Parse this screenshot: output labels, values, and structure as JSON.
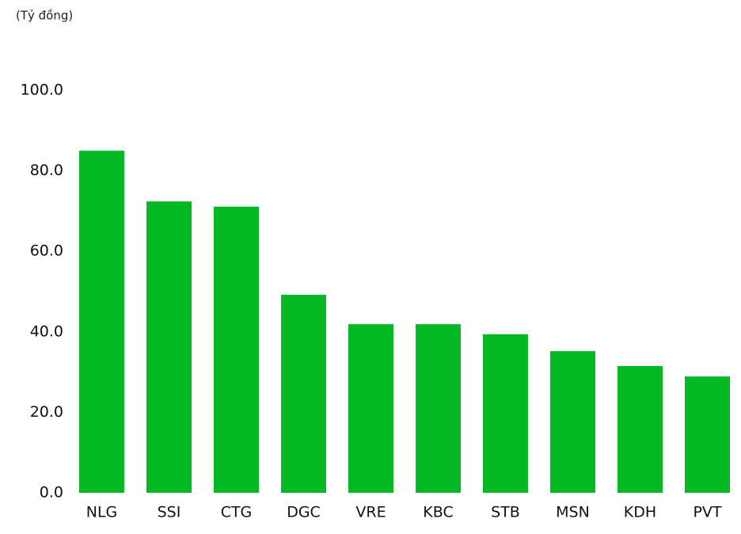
{
  "chart_data": {
    "type": "bar",
    "y_label": "(Tỷ đồng)",
    "categories": [
      "NLG",
      "SSI",
      "CTG",
      "DGC",
      "VRE",
      "KBC",
      "STB",
      "MSN",
      "KDH",
      "PVT"
    ],
    "values": [
      85.0,
      72.4,
      71.1,
      49.2,
      41.9,
      41.9,
      39.4,
      35.2,
      31.5,
      28.9
    ],
    "color": "#04b923",
    "ylim": [
      0,
      100
    ],
    "yticks": [
      {
        "value": 0,
        "label": "0.0"
      },
      {
        "value": 20,
        "label": "20.0"
      },
      {
        "value": 40,
        "label": "40.0"
      },
      {
        "value": 60,
        "label": "60.0"
      },
      {
        "value": 80,
        "label": "80.0"
      },
      {
        "value": 100,
        "label": "100.0"
      }
    ],
    "grid": false
  }
}
